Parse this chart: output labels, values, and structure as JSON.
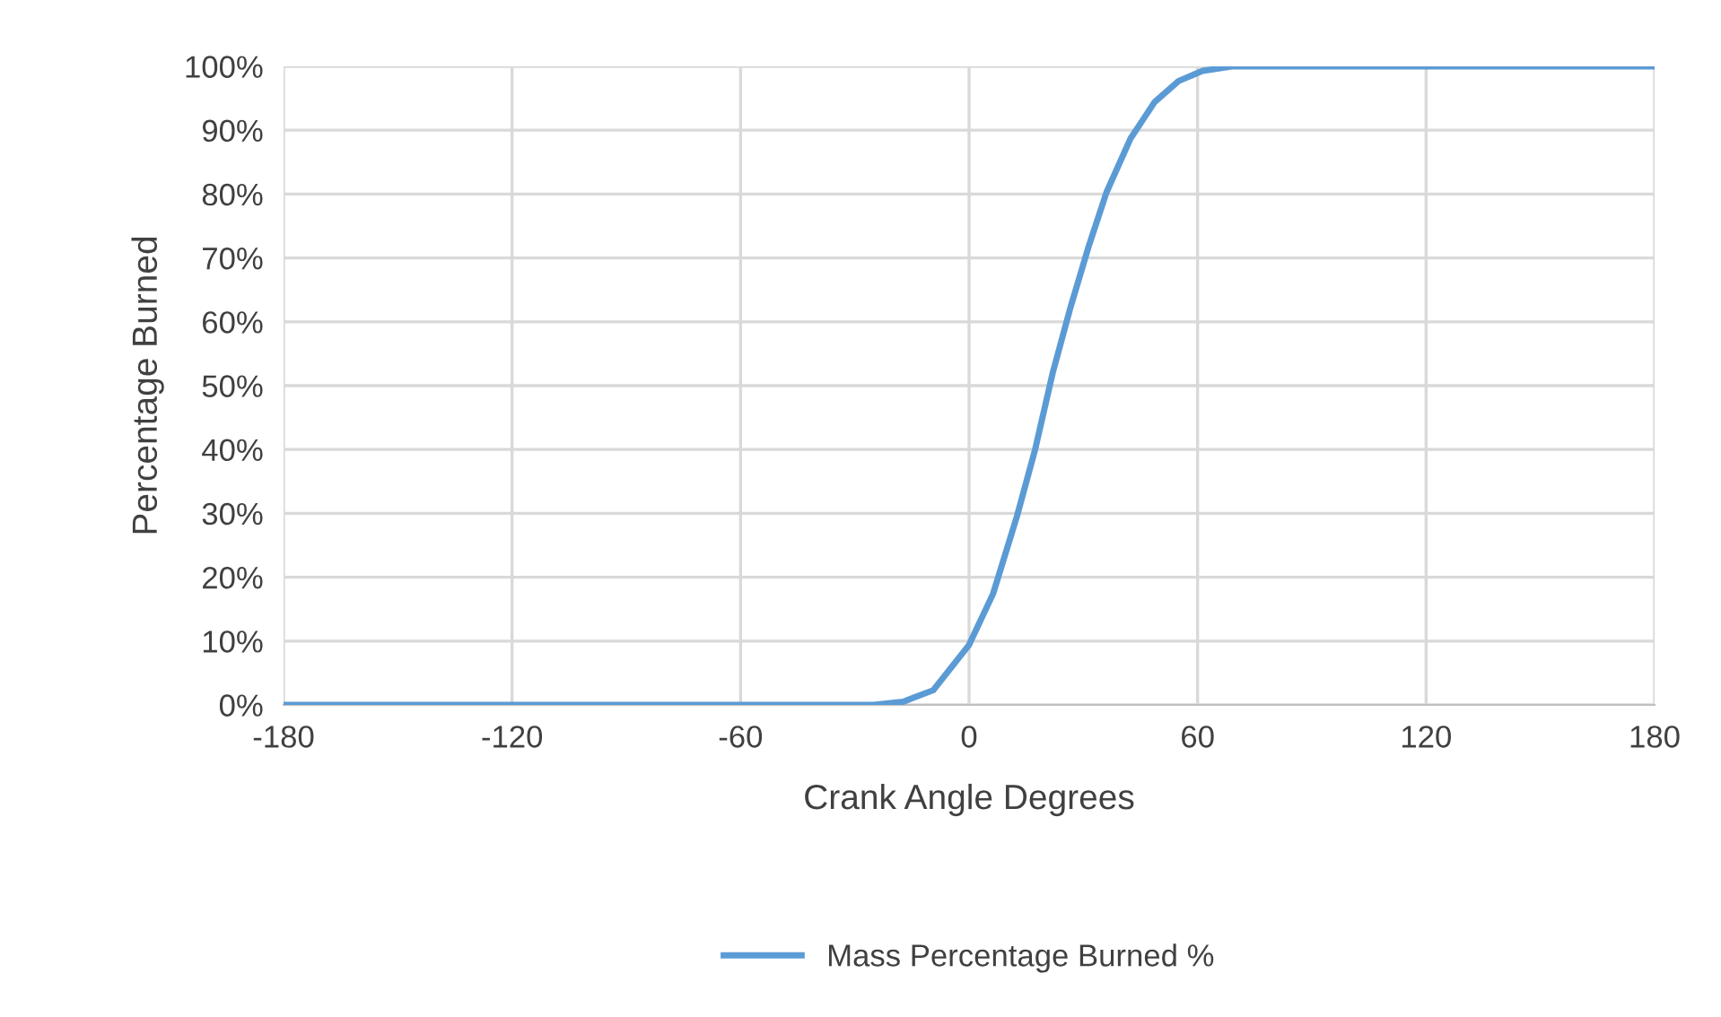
{
  "chart_data": {
    "type": "line",
    "xlabel": "Crank Angle Degrees",
    "ylabel": "Percentage Burned",
    "x": [
      -180,
      -60,
      -25,
      -17.3,
      -9.4,
      0,
      6.3,
      12.6,
      17.3,
      22,
      26.7,
      31.4,
      36.1,
      42.4,
      48.7,
      55,
      61.3,
      69,
      80,
      120,
      180
    ],
    "series": [
      {
        "name": "Mass Percentage Burned %",
        "color": "#5b9bd5",
        "values": [
          0,
          0,
          0,
          0.5,
          2.3,
          9.4,
          17.4,
          29.6,
          39.9,
          52.1,
          62.4,
          71.8,
          80.3,
          88.7,
          94.4,
          97.7,
          99.3,
          100,
          100,
          100,
          100
        ]
      }
    ],
    "xlim": [
      -180,
      180
    ],
    "xticks": [
      -180,
      -120,
      -60,
      0,
      60,
      120,
      180
    ],
    "ylim": [
      0,
      100
    ],
    "yticks": [
      {
        "value": 0,
        "label": "0%"
      },
      {
        "value": 10,
        "label": "10%"
      },
      {
        "value": 20,
        "label": "20%"
      },
      {
        "value": 30,
        "label": "30%"
      },
      {
        "value": 40,
        "label": "40%"
      },
      {
        "value": 50,
        "label": "50%"
      },
      {
        "value": 60,
        "label": "60%"
      },
      {
        "value": 70,
        "label": "70%"
      },
      {
        "value": 80,
        "label": "80%"
      },
      {
        "value": 90,
        "label": "90%"
      },
      {
        "value": 100,
        "label": "100%"
      }
    ],
    "grid": true,
    "legend": "bottom",
    "marker": "none",
    "line_style": "solid"
  }
}
